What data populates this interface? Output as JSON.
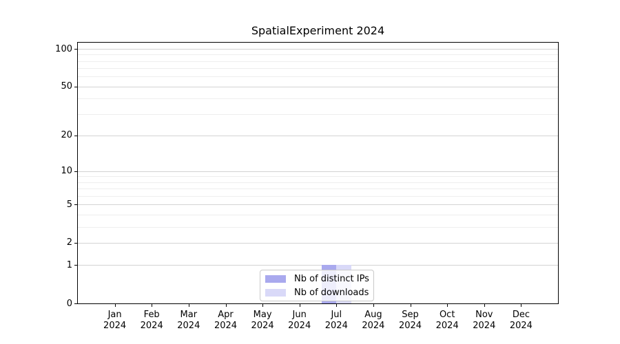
{
  "title": "SpatialExperiment 2024",
  "chart_data": {
    "type": "bar",
    "title": "SpatialExperiment 2024",
    "categories": [
      {
        "month": "Jan",
        "year": "2024"
      },
      {
        "month": "Feb",
        "year": "2024"
      },
      {
        "month": "Mar",
        "year": "2024"
      },
      {
        "month": "Apr",
        "year": "2024"
      },
      {
        "month": "May",
        "year": "2024"
      },
      {
        "month": "Jun",
        "year": "2024"
      },
      {
        "month": "Jul",
        "year": "2024"
      },
      {
        "month": "Aug",
        "year": "2024"
      },
      {
        "month": "Sep",
        "year": "2024"
      },
      {
        "month": "Oct",
        "year": "2024"
      },
      {
        "month": "Nov",
        "year": "2024"
      },
      {
        "month": "Dec",
        "year": "2024"
      }
    ],
    "series": [
      {
        "name": "Nb of distinct IPs",
        "color": "#a9a9ee",
        "values": [
          0,
          0,
          0,
          0,
          0,
          0,
          1,
          0,
          0,
          0,
          0,
          0
        ]
      },
      {
        "name": "Nb of downloads",
        "color": "#d9d9f8",
        "values": [
          0,
          0,
          0,
          0,
          0,
          0,
          1,
          0,
          0,
          0,
          0,
          0
        ]
      }
    ],
    "xlabel": "",
    "ylabel": "",
    "y_scale": "log10(value+1)",
    "y_axis_max": 112,
    "y_major_ticks": [
      0,
      1,
      2,
      5,
      10,
      20,
      50,
      100
    ],
    "y_minor_gridlines": [
      3,
      4,
      6,
      7,
      8,
      9,
      30,
      40,
      60,
      70,
      80,
      90
    ],
    "grid": "horizontal",
    "legend_position": "lower center"
  },
  "colors": {
    "major_grid": "#d3d3d3",
    "minor_grid": "#eeeeee",
    "axis": "#000000",
    "legend_border": "#c8c8c8",
    "background": "#ffffff"
  }
}
